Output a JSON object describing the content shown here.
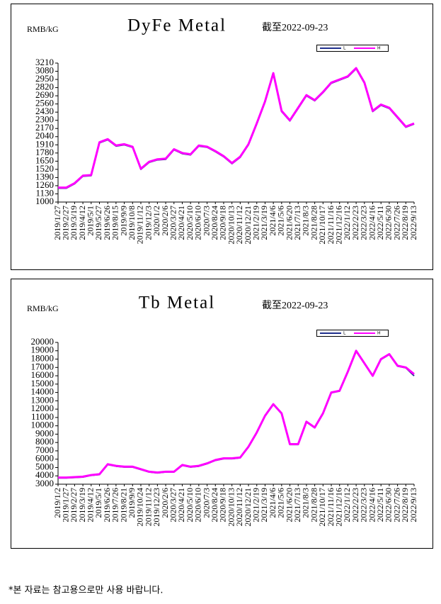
{
  "chart_data": [
    {
      "type": "line",
      "title": "DyFe Metal",
      "subtitle": "截至2022-09-23",
      "y_label": "RMB/kG",
      "categories": [
        "2019/1/27",
        "2019/2/27",
        "2019/3/19",
        "2019/4/12",
        "2019/5/1",
        "2019/5/27",
        "2019/6/26",
        "2019/8/15",
        "2019/9/9",
        "2019/10/8",
        "2019/11/12",
        "2019/12/3",
        "2020/1/2",
        "2020/2/6",
        "2020/3/27",
        "2020/4/21",
        "2020/5/10",
        "2020/6/10",
        "2020/7/3",
        "2020/8/24",
        "2020/9/18",
        "2020/10/13",
        "2020/11/12",
        "2020/12/21",
        "2021/2/19",
        "2021/3/19",
        "2021/4/6",
        "2021/5/6",
        "2021/6/20",
        "2021/7/13",
        "2021/8/3",
        "2021/8/28",
        "2021/10/17",
        "2021/11/16",
        "2021/12/16",
        "2022/1/12",
        "2022/2/23",
        "2022/3/23",
        "2022/4/16",
        "2022/5/11",
        "2022/6/30",
        "2022/7/26",
        "2022/8/19",
        "2022/9/13"
      ],
      "series": [
        {
          "name": "L",
          "color": "#1f2f8c",
          "values": [
            1220,
            1220,
            1290,
            1410,
            1420,
            1940,
            1990,
            1890,
            1910,
            1870,
            1520,
            1630,
            1670,
            1680,
            1830,
            1770,
            1750,
            1890,
            1870,
            1800,
            1720,
            1610,
            1710,
            1910,
            2240,
            2590,
            3040,
            2440,
            2290,
            2490,
            2690,
            2610,
            2740,
            2890,
            2940,
            2990,
            3120,
            2890,
            2440,
            2540,
            2490,
            2340,
            2190,
            2240
          ]
        },
        {
          "name": "H",
          "color": "#ff00ff",
          "values": [
            1230,
            1230,
            1300,
            1420,
            1430,
            1950,
            2000,
            1900,
            1920,
            1880,
            1530,
            1640,
            1680,
            1690,
            1840,
            1780,
            1760,
            1900,
            1880,
            1810,
            1730,
            1620,
            1720,
            1920,
            2250,
            2600,
            3050,
            2450,
            2300,
            2500,
            2700,
            2620,
            2750,
            2900,
            2950,
            3000,
            3130,
            2900,
            2450,
            2550,
            2500,
            2350,
            2200,
            2250
          ]
        }
      ],
      "ylim": [
        1000,
        3210
      ],
      "yticks": [
        1000,
        1130,
        1260,
        1390,
        1520,
        1650,
        1780,
        1910,
        2040,
        2170,
        2300,
        2430,
        2560,
        2690,
        2820,
        2950,
        3080,
        3210
      ]
    },
    {
      "type": "line",
      "title": "Tb Metal",
      "subtitle": "截至2022-09-23",
      "y_label": "RMB/kG",
      "categories": [
        "2019/1/2",
        "2019/1/27",
        "2019/2/27",
        "2019/3/19",
        "2019/4/12",
        "2019/5/1",
        "2019/6/26",
        "2019/7/26",
        "2019/8/21",
        "2019/9/9",
        "2019/10/24",
        "2019/11/12",
        "2019/12/23",
        "2020/2/6",
        "2020/3/27",
        "2020/4/21",
        "2020/5/10",
        "2020/6/10",
        "2020/7/3",
        "2020/8/24",
        "2020/9/18",
        "2020/10/13",
        "2020/11/12",
        "2020/12/21",
        "2021/2/19",
        "2021/3/19",
        "2021/4/6",
        "2021/5/6",
        "2021/6/20",
        "2021/7/13",
        "2021/8/3",
        "2021/8/28",
        "2021/10/17",
        "2021/11/16",
        "2021/12/16",
        "2022/1/12",
        "2022/2/23",
        "2022/3/23",
        "2022/4/16",
        "2022/5/11",
        "2022/6/30",
        "2022/7/26",
        "2022/8/19",
        "2022/9/13"
      ],
      "series": [
        {
          "name": "L",
          "color": "#1f2f8c",
          "values": [
            3750,
            3750,
            3800,
            3850,
            4050,
            4150,
            5350,
            5150,
            5050,
            5050,
            4750,
            4450,
            4350,
            4450,
            4450,
            5250,
            5050,
            5150,
            5450,
            5850,
            6050,
            6050,
            6150,
            7450,
            9150,
            11150,
            12550,
            11450,
            7750,
            7750,
            10450,
            9750,
            11450,
            13950,
            14150,
            16450,
            18950,
            17450,
            15950,
            17950,
            18550,
            17150,
            16950,
            16000
          ]
        },
        {
          "name": "H",
          "color": "#ff00ff",
          "values": [
            3800,
            3800,
            3850,
            3900,
            4100,
            4200,
            5400,
            5200,
            5100,
            5100,
            4800,
            4500,
            4400,
            4500,
            4500,
            5300,
            5100,
            5200,
            5500,
            5900,
            6100,
            6100,
            6200,
            7500,
            9200,
            11200,
            12600,
            11500,
            7800,
            7800,
            10500,
            9800,
            11500,
            14000,
            14200,
            16500,
            19000,
            17500,
            16000,
            18000,
            18600,
            17200,
            17000,
            16200
          ]
        }
      ],
      "ylim": [
        3000,
        20000
      ],
      "yticks": [
        3000,
        4000,
        5000,
        6000,
        7000,
        8000,
        9000,
        10000,
        11000,
        12000,
        13000,
        14000,
        15000,
        16000,
        17000,
        18000,
        19000,
        20000
      ]
    }
  ],
  "footnote": "*본 자료는 참고용으로만 사용 바랍니다."
}
